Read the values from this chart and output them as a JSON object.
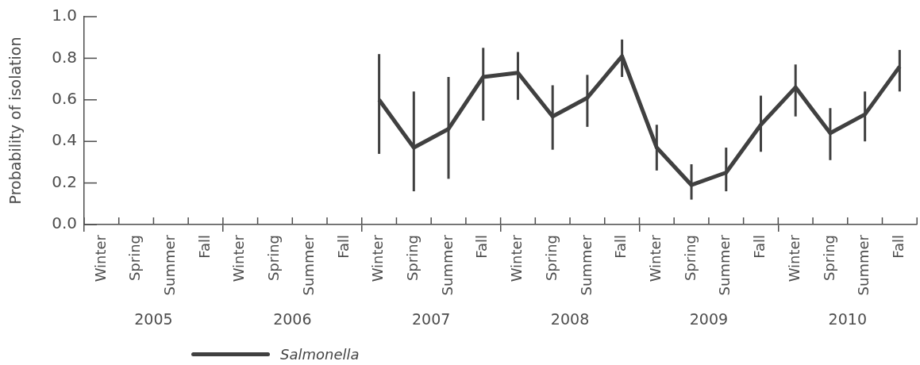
{
  "chart_data": {
    "type": "line",
    "ylabel": "Probability of isolation",
    "categories": [
      "Winter",
      "Spring",
      "Summer",
      "Fall",
      "Winter",
      "Spring",
      "Summer",
      "Fall",
      "Winter",
      "Spring",
      "Summer",
      "Fall",
      "Winter",
      "Spring",
      "Summer",
      "Fall",
      "Winter",
      "Spring",
      "Summer",
      "Fall",
      "Winter",
      "Spring",
      "Summer",
      "Fall"
    ],
    "annotations": [
      "2005",
      "2006",
      "2007",
      "2008",
      "2009",
      "2010"
    ],
    "series": [
      {
        "name": "Salmonella",
        "color": "#404040",
        "values": [
          null,
          null,
          null,
          null,
          null,
          null,
          null,
          null,
          0.6,
          0.37,
          0.46,
          0.71,
          0.73,
          0.52,
          0.61,
          0.81,
          0.37,
          0.19,
          0.25,
          0.48,
          0.66,
          0.44,
          0.53,
          0.76
        ],
        "errors": [
          null,
          null,
          null,
          null,
          null,
          null,
          null,
          null,
          [
            0.34,
            0.82
          ],
          [
            0.16,
            0.64
          ],
          [
            0.22,
            0.71
          ],
          [
            0.5,
            0.85
          ],
          [
            0.6,
            0.83
          ],
          [
            0.36,
            0.67
          ],
          [
            0.47,
            0.72
          ],
          [
            0.71,
            0.89
          ],
          [
            0.26,
            0.48
          ],
          [
            0.12,
            0.29
          ],
          [
            0.16,
            0.37
          ],
          [
            0.35,
            0.62
          ],
          [
            0.52,
            0.77
          ],
          [
            0.31,
            0.56
          ],
          [
            0.4,
            0.64
          ],
          [
            0.64,
            0.84
          ]
        ]
      }
    ],
    "ylim": [
      0,
      1
    ],
    "yticks": [
      {
        "value": 0,
        "label": "0.0"
      },
      0.2,
      0.4,
      0.6,
      0.8,
      {
        "value": 1,
        "label": "1.0"
      }
    ],
    "grid": false,
    "legend": "bottom",
    "marker": "none",
    "line_style": "solid"
  }
}
